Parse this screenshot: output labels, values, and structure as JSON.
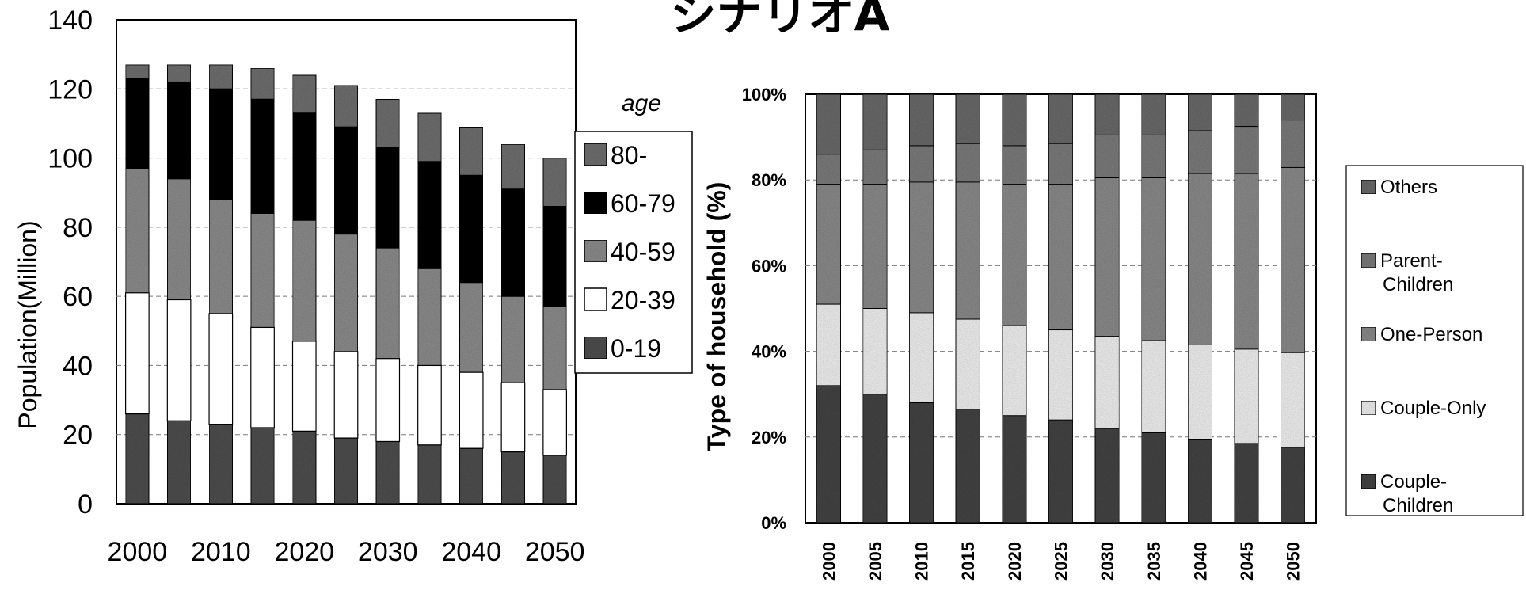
{
  "page": {
    "title": "シナリオA"
  },
  "colors": {
    "c80": "#6f6f6f",
    "c6079": "#0e0e0e",
    "c4059": "#8c8c8c",
    "c2039": "#ffffff",
    "c019": "#505050",
    "others": "#6a6a6a",
    "parent_children": "#7c7c7c",
    "one_person": "#8a8a8a",
    "couple_only": "#f0f0f0",
    "couple_children": "#454545"
  },
  "chart_data": [
    {
      "type": "bar",
      "stacked": true,
      "title": "",
      "xlabel": "",
      "ylabel": "Population(Million)",
      "ylim": [
        0,
        140
      ],
      "yticks": [
        0,
        20,
        40,
        60,
        80,
        100,
        120,
        140
      ],
      "categories": [
        "2000",
        "2005",
        "2010",
        "2015",
        "2020",
        "2025",
        "2030",
        "2035",
        "2040",
        "2045",
        "2050"
      ],
      "x_tick_labels": [
        "2000",
        "2010",
        "2020",
        "2030",
        "2040",
        "2050"
      ],
      "legend": {
        "title": "age",
        "placement": "right"
      },
      "series": [
        {
          "name": "0-19",
          "color_key": "c019",
          "values": [
            26,
            24,
            23,
            22,
            21,
            19,
            18,
            17,
            16,
            15,
            14
          ]
        },
        {
          "name": "20-39",
          "color_key": "c2039",
          "values": [
            35,
            35,
            32,
            29,
            26,
            25,
            24,
            23,
            22,
            20,
            19
          ]
        },
        {
          "name": "40-59",
          "color_key": "c4059",
          "values": [
            36,
            35,
            33,
            33,
            35,
            34,
            32,
            28,
            26,
            25,
            24
          ]
        },
        {
          "name": "60-79",
          "color_key": "c6079",
          "values": [
            26,
            28,
            32,
            33,
            31,
            31,
            29,
            31,
            31,
            31,
            29
          ]
        },
        {
          "name": "80-",
          "color_key": "c80",
          "values": [
            4,
            5,
            7,
            9,
            11,
            12,
            14,
            14,
            14,
            13,
            14
          ]
        }
      ]
    },
    {
      "type": "bar",
      "stacked": true,
      "percent": true,
      "title": "",
      "xlabel": "",
      "ylabel": "Type of household (%)",
      "ylim": [
        0,
        100
      ],
      "yticks": [
        "0%",
        "20%",
        "40%",
        "60%",
        "80%",
        "100%"
      ],
      "categories": [
        "2000",
        "2005",
        "2010",
        "2015",
        "2020",
        "2025",
        "2030",
        "2035",
        "2040",
        "2045",
        "2050"
      ],
      "legend": {
        "placement": "right"
      },
      "series": [
        {
          "name": "Couple-\nChildren",
          "color_key": "couple_children",
          "values": [
            32,
            30,
            28,
            26.5,
            25,
            24,
            22,
            21,
            19.5,
            18.5,
            17.5
          ]
        },
        {
          "name": "Couple-Only",
          "color_key": "couple_only",
          "values": [
            19,
            20,
            21,
            21,
            21,
            21,
            21.5,
            21.5,
            22,
            22,
            22
          ]
        },
        {
          "name": "One-Person",
          "color_key": "one_person",
          "values": [
            28,
            29,
            30.5,
            32,
            33,
            34,
            37,
            38,
            40,
            41,
            43
          ]
        },
        {
          "name": "Parent-\nChildren",
          "color_key": "parent_children",
          "values": [
            7,
            8,
            8.5,
            9,
            9,
            9.5,
            10,
            10,
            10,
            11,
            11
          ]
        },
        {
          "name": "Others",
          "color_key": "others",
          "values": [
            14,
            13,
            12,
            11.5,
            12,
            11.5,
            9.5,
            9.5,
            8.5,
            7.5,
            6
          ]
        }
      ]
    }
  ]
}
